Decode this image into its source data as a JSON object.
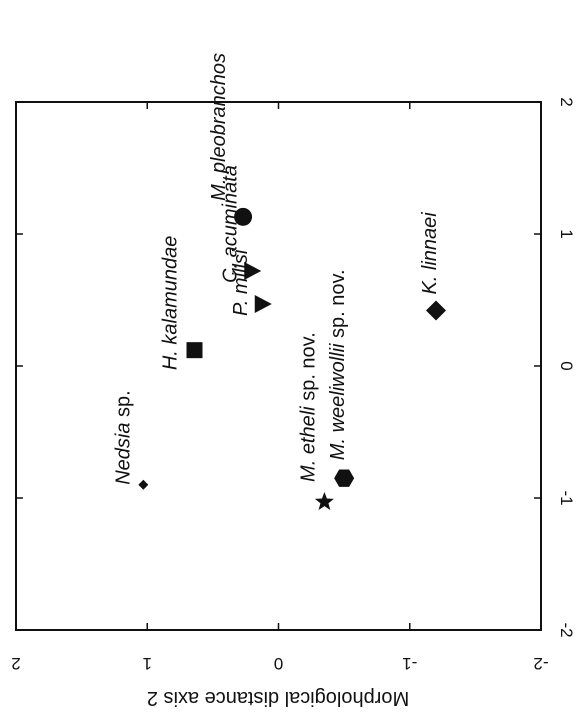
{
  "chart_data": {
    "type": "scatter",
    "title": "",
    "xlabel": "",
    "ylabel": "Morphological distance axis 2",
    "xlim": [
      -2,
      2
    ],
    "ylim": [
      -2,
      2
    ],
    "x_ticks": [
      "-2",
      "-1",
      "0",
      "1",
      "2"
    ],
    "y_ticks": [
      "-2",
      "-1",
      "0",
      "1",
      "2"
    ],
    "grid": false,
    "legend": "none",
    "points": [
      {
        "x": -0.9,
        "y": 1.03,
        "marker": "diamond-small",
        "label_italic": "Nedsia",
        "label_plain": " sp."
      },
      {
        "x": 0.12,
        "y": 0.64,
        "marker": "square",
        "label_italic": "H. kalamundae",
        "label_plain": ""
      },
      {
        "x": 1.13,
        "y": 0.27,
        "marker": "circle",
        "label_italic": "M. pleobranchos",
        "label_plain": ""
      },
      {
        "x": 0.72,
        "y": 0.2,
        "marker": "triangle",
        "label_italic": "C. acuminata",
        "label_plain": ""
      },
      {
        "x": 0.47,
        "y": 0.12,
        "marker": "triangle",
        "label_italic": "P. millsi",
        "label_plain": ""
      },
      {
        "x": -1.03,
        "y": -0.35,
        "marker": "star",
        "label_italic": "M. etheli",
        "label_plain": " sp. nov."
      },
      {
        "x": -0.85,
        "y": -0.5,
        "marker": "hexagon",
        "label_italic": "M. weeliwollii",
        "label_plain": " sp. nov."
      },
      {
        "x": 0.42,
        "y": -1.2,
        "marker": "diamond",
        "label_italic": "K. linnaei",
        "label_plain": ""
      }
    ]
  }
}
